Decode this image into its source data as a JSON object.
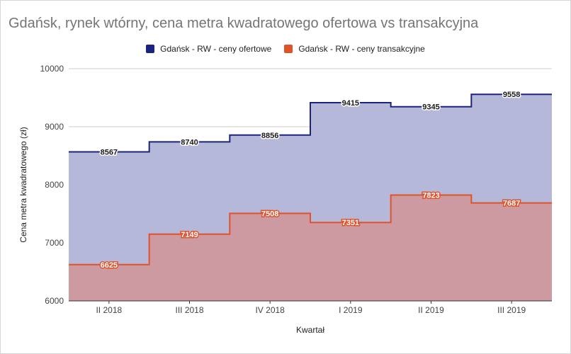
{
  "chart_data": {
    "type": "area",
    "title": "Gdańsk, rynek wtórny, cena metra kwadratowego ofertowa vs transakcyjna",
    "xlabel": "Kwartał",
    "ylabel": "Cena metra kwadratowego (zł)",
    "categories": [
      "II 2018",
      "III 2018",
      "IV 2018",
      "I 2019",
      "II 2019",
      "III 2019"
    ],
    "ylim": [
      6000,
      10000
    ],
    "yticks": [
      6000,
      7000,
      8000,
      9000,
      10000
    ],
    "grid": true,
    "legend_position": "top",
    "step": true,
    "series": [
      {
        "name": "Gdańsk - RW - ceny ofertowe",
        "values": [
          8567,
          8740,
          8856,
          9415,
          9345,
          9558
        ],
        "color": "#1a237e",
        "fill": "#b6b8d9"
      },
      {
        "name": "Gdańsk - RW - ceny transakcyjne",
        "values": [
          6625,
          7149,
          7508,
          7351,
          7823,
          7687
        ],
        "color": "#e0522a",
        "fill": "#cc9aa0"
      }
    ]
  }
}
